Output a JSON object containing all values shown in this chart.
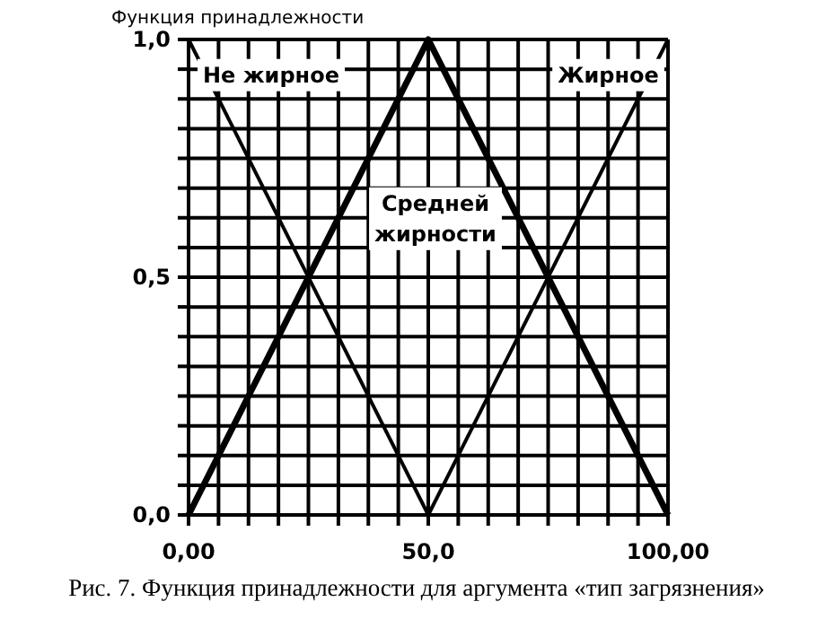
{
  "chart_data": {
    "type": "line",
    "title": "Функция принадлежности",
    "annotations": [
      "Рис. 7. Функция принадлежности для аргумента «тип загрязнения»"
    ],
    "xlim": [
      0,
      100
    ],
    "ylim": [
      0,
      1
    ],
    "xticks": [
      {
        "value": 0,
        "label": "0,00"
      },
      {
        "value": 6.25,
        "label": null
      },
      {
        "value": 12.5,
        "label": null
      },
      {
        "value": 18.75,
        "label": null
      },
      {
        "value": 25,
        "label": null
      },
      {
        "value": 31.25,
        "label": null
      },
      {
        "value": 37.5,
        "label": null
      },
      {
        "value": 43.75,
        "label": null
      },
      {
        "value": 50,
        "label": "50,0"
      },
      {
        "value": 56.25,
        "label": null
      },
      {
        "value": 62.5,
        "label": null
      },
      {
        "value": 68.75,
        "label": null
      },
      {
        "value": 75,
        "label": null
      },
      {
        "value": 81.25,
        "label": null
      },
      {
        "value": 87.5,
        "label": null
      },
      {
        "value": 93.75,
        "label": null
      },
      {
        "value": 100,
        "label": "100,00"
      }
    ],
    "yticks": [
      {
        "value": 0,
        "label": "0,0"
      },
      {
        "value": 0.0625,
        "label": null
      },
      {
        "value": 0.125,
        "label": null
      },
      {
        "value": 0.1875,
        "label": null
      },
      {
        "value": 0.25,
        "label": null
      },
      {
        "value": 0.3125,
        "label": null
      },
      {
        "value": 0.375,
        "label": null
      },
      {
        "value": 0.4375,
        "label": null
      },
      {
        "value": 0.5,
        "label": "0,5"
      },
      {
        "value": 0.5625,
        "label": null
      },
      {
        "value": 0.625,
        "label": null
      },
      {
        "value": 0.6875,
        "label": null
      },
      {
        "value": 0.75,
        "label": null
      },
      {
        "value": 0.8125,
        "label": null
      },
      {
        "value": 0.875,
        "label": null
      },
      {
        "value": 0.9375,
        "label": null
      },
      {
        "value": 1,
        "label": "1,0"
      }
    ],
    "grid": true,
    "marker": "none",
    "line_style": "solid",
    "series": [
      {
        "name": "Не жирное",
        "color": "#000000",
        "x": [
          0,
          50
        ],
        "values": [
          1,
          0
        ]
      },
      {
        "name": "Средней жирности",
        "color": "#000000",
        "x": [
          0,
          50,
          100
        ],
        "values": [
          0,
          1,
          0
        ]
      },
      {
        "name": "Жирное",
        "color": "#000000",
        "x": [
          50,
          100
        ],
        "values": [
          0,
          1
        ]
      }
    ]
  }
}
